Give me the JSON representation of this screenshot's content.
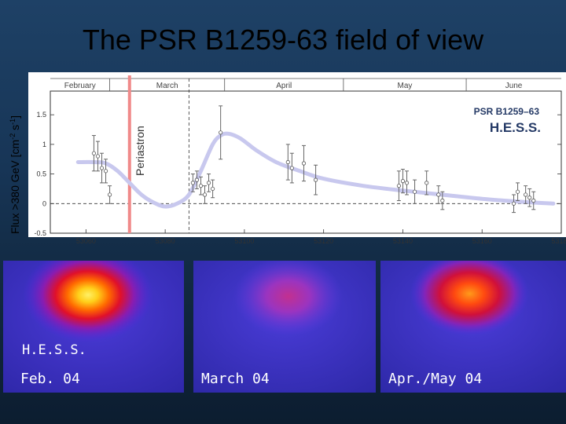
{
  "title": "The PSR B1259-63 field of view",
  "colors": {
    "periastron": "#f08a8a",
    "curve": "#c8c8ee",
    "points": "#ffffff"
  },
  "chart_data": {
    "type": "scatter",
    "ylabel_main": "Flux >380 GeV [cm",
    "ylabel_exp1": "-2",
    "ylabel_mid": " s",
    "ylabel_exp2": "-1",
    "ylabel_end": "]",
    "legend": {
      "line1": "PSR B1259–63",
      "line2": "H.E.S.S.",
      "placement": "top-right"
    },
    "periastron_label": "Periastron",
    "periastron_x": 53071,
    "dashed_x": 53086,
    "xlim": [
      53051,
      53180
    ],
    "ylim": [
      -0.5,
      1.9
    ],
    "x_ticks": [
      "53060",
      "53080",
      "53100",
      "53120",
      "53140",
      "53160",
      "53180"
    ],
    "y_ticks": [
      "-0.5",
      "0",
      "0.5",
      "1",
      "1.5"
    ],
    "months": [
      {
        "name": "February",
        "x": 53052,
        "start": 53051,
        "end": 53066
      },
      {
        "name": "March",
        "x": 53071,
        "start": 53066,
        "end": 53095
      },
      {
        "name": "April",
        "x": 53095,
        "start": 53095,
        "end": 53125
      },
      {
        "name": "May",
        "x": 53125,
        "start": 53125,
        "end": 53156
      },
      {
        "name": "June",
        "x": 53156,
        "start": 53156,
        "end": 53180
      }
    ],
    "points": [
      {
        "x": 53062,
        "y": 0.85,
        "err": 0.3
      },
      {
        "x": 53063,
        "y": 0.8,
        "err": 0.25
      },
      {
        "x": 53064,
        "y": 0.6,
        "err": 0.25
      },
      {
        "x": 53065,
        "y": 0.55,
        "err": 0.2
      },
      {
        "x": 53066,
        "y": 0.15,
        "err": 0.15
      },
      {
        "x": 53087,
        "y": 0.35,
        "err": 0.15
      },
      {
        "x": 53088,
        "y": 0.4,
        "err": 0.15
      },
      {
        "x": 53089,
        "y": 0.3,
        "err": 0.15
      },
      {
        "x": 53090,
        "y": 0.15,
        "err": 0.15
      },
      {
        "x": 53091,
        "y": 0.35,
        "err": 0.15
      },
      {
        "x": 53092,
        "y": 0.25,
        "err": 0.15
      },
      {
        "x": 53094,
        "y": 1.2,
        "err": 0.45
      },
      {
        "x": 53111,
        "y": 0.7,
        "err": 0.3
      },
      {
        "x": 53112,
        "y": 0.6,
        "err": 0.25
      },
      {
        "x": 53115,
        "y": 0.68,
        "err": 0.3
      },
      {
        "x": 53118,
        "y": 0.4,
        "err": 0.25
      },
      {
        "x": 53139,
        "y": 0.3,
        "err": 0.25
      },
      {
        "x": 53140,
        "y": 0.38,
        "err": 0.2
      },
      {
        "x": 53141,
        "y": 0.35,
        "err": 0.2
      },
      {
        "x": 53143,
        "y": 0.2,
        "err": 0.2
      },
      {
        "x": 53146,
        "y": 0.35,
        "err": 0.2
      },
      {
        "x": 53149,
        "y": 0.15,
        "err": 0.15
      },
      {
        "x": 53150,
        "y": 0.05,
        "err": 0.15
      },
      {
        "x": 53168,
        "y": 0.0,
        "err": 0.15
      },
      {
        "x": 53169,
        "y": 0.2,
        "err": 0.15
      },
      {
        "x": 53171,
        "y": 0.15,
        "err": 0.15
      },
      {
        "x": 53172,
        "y": 0.1,
        "err": 0.15
      },
      {
        "x": 53173,
        "y": 0.05,
        "err": 0.15
      }
    ],
    "model_curve": [
      [
        53058,
        0.7
      ],
      [
        53062,
        0.7
      ],
      [
        53065,
        0.68
      ],
      [
        53068,
        0.55
      ],
      [
        53071,
        0.35
      ],
      [
        53074,
        0.15
      ],
      [
        53077,
        0.02
      ],
      [
        53080,
        -0.05
      ],
      [
        53083,
        0.0
      ],
      [
        53086,
        0.15
      ],
      [
        53089,
        0.55
      ],
      [
        53092,
        1.0
      ],
      [
        53094,
        1.15
      ],
      [
        53096,
        1.18
      ],
      [
        53099,
        1.1
      ],
      [
        53103,
        0.9
      ],
      [
        53108,
        0.7
      ],
      [
        53114,
        0.55
      ],
      [
        53120,
        0.42
      ],
      [
        53130,
        0.3
      ],
      [
        53140,
        0.22
      ],
      [
        53150,
        0.15
      ],
      [
        53160,
        0.08
      ],
      [
        53170,
        0.03
      ],
      [
        53178,
        0.0
      ]
    ]
  },
  "panels": [
    {
      "label": "Feb. 04"
    },
    {
      "label": "March 04"
    },
    {
      "label": "Apr./May 04"
    }
  ],
  "hess_label": "H.E.S.S."
}
